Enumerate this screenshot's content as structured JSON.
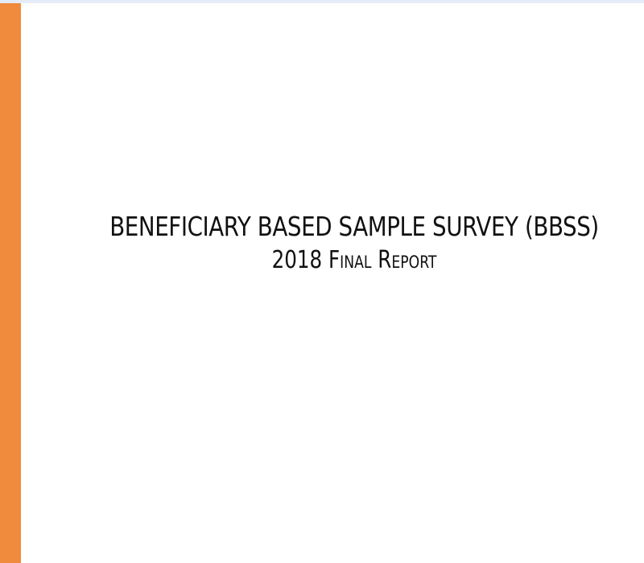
{
  "document": {
    "title": "BENEFICIARY BASED SAMPLE SURVEY (BBSS)",
    "subtitle": "2018 Final Report"
  },
  "colors": {
    "accent_bar": "#f08a3c",
    "text": "#111111",
    "top_line": "#e3ecf7"
  }
}
